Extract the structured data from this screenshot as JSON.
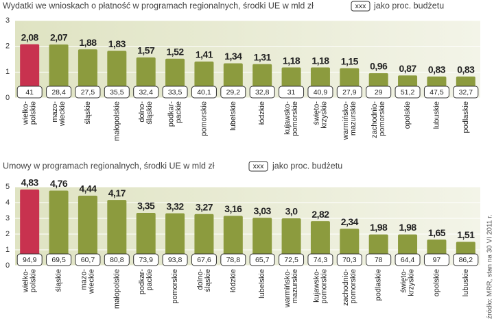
{
  "source": "źródło: MRR, stan na 30 VI 2011 r.",
  "chart_data": [
    {
      "type": "bar",
      "title": "Wydatki we wnioskach o płatność w programach regionalnych, środki UE w mld zł",
      "legend_box": "xxx",
      "legend_label": "jako proc. budżetu",
      "categories": [
        [
          "wielko-",
          "polskie"
        ],
        [
          "mazo-",
          "wieckie"
        ],
        [
          "śląskie"
        ],
        [
          "małopolskie"
        ],
        [
          "dolno-",
          "śląskie"
        ],
        [
          "podkar-",
          "packie"
        ],
        [
          "pomorskie"
        ],
        [
          "lubelskie"
        ],
        [
          "łódzkie"
        ],
        [
          "kujawsko-",
          "pomorskie"
        ],
        [
          "święto-",
          "krzyskie"
        ],
        [
          "warmińsko-",
          "mazurskie"
        ],
        [
          "zachodnio-",
          "pomorskie"
        ],
        [
          "opolskie"
        ],
        [
          "lubuskie"
        ],
        [
          "podlaskie"
        ]
      ],
      "values": [
        2.08,
        2.07,
        1.88,
        1.83,
        1.57,
        1.52,
        1.41,
        1.34,
        1.31,
        1.18,
        1.18,
        1.15,
        0.96,
        0.87,
        0.83,
        0.83
      ],
      "value_labels": [
        "2,08",
        "2,07",
        "1,88",
        "1,83",
        "1,57",
        "1,52",
        "1,41",
        "1,34",
        "1,31",
        "1,18",
        "1,18",
        "1,15",
        "0,96",
        "0,87",
        "0,83",
        "0,83"
      ],
      "shares": [
        41,
        28.4,
        27.5,
        35.5,
        32.4,
        33.5,
        40.1,
        29.2,
        32.8,
        31,
        40.9,
        27.9,
        29,
        51.2,
        47.5,
        32.7
      ],
      "share_labels": [
        "41",
        "28,4",
        "27,5",
        "35,5",
        "32,4",
        "33,5",
        "40,1",
        "29,2",
        "32,8",
        "31",
        "40,9",
        "27,9",
        "29",
        "51,2",
        "47,5",
        "32,7"
      ],
      "color": "#8c9b3e",
      "highlight_color": "#c8324f",
      "highlight": 0,
      "ylim": [
        0,
        3
      ],
      "yticks": [
        0,
        1,
        2,
        3
      ],
      "grid": true
    },
    {
      "type": "bar",
      "title": "Umowy w programach regionalnych, środki UE w mld zł",
      "legend_box": "xxx",
      "legend_label": "jako proc. budżetu",
      "categories": [
        [
          "wielko-",
          "polskie"
        ],
        [
          "śląskie"
        ],
        [
          "mazo-",
          "wieckie"
        ],
        [
          "małopolskie"
        ],
        [
          "podkar-",
          "packie"
        ],
        [
          "pomorskie"
        ],
        [
          "dolno-",
          "śląskie"
        ],
        [
          "łódzkie"
        ],
        [
          "lubelskie"
        ],
        [
          "warmińsko-",
          "mazurskie"
        ],
        [
          "kujawsko-",
          "pomorskie"
        ],
        [
          "zachodnio-",
          "pomorskie"
        ],
        [
          "podlaskie"
        ],
        [
          "święto-",
          "krzyskie"
        ],
        [
          "opolskie"
        ],
        [
          "lubuskie"
        ]
      ],
      "values": [
        4.83,
        4.76,
        4.44,
        4.17,
        3.35,
        3.32,
        3.27,
        3.16,
        3.03,
        3,
        2.82,
        2.34,
        1.98,
        1.98,
        1.65,
        1.51
      ],
      "value_labels": [
        "4,83",
        "4,76",
        "4,44",
        "4,17",
        "3,35",
        "3,32",
        "3,27",
        "3,16",
        "3,03",
        "3,0",
        "2,82",
        "2,34",
        "1,98",
        "1,98",
        "1,65",
        "1,51"
      ],
      "shares": [
        94.9,
        69.5,
        60.7,
        80.8,
        73.9,
        93.8,
        67.6,
        78.8,
        65.7,
        72.5,
        74.3,
        70.3,
        78,
        64.4,
        97,
        86.2
      ],
      "share_labels": [
        "94,9",
        "69,5",
        "60,7",
        "80,8",
        "73,9",
        "93,8",
        "67,6",
        "78,8",
        "65,7",
        "72,5",
        "74,3",
        "70,3",
        "78",
        "64,4",
        "97",
        "86,2"
      ],
      "color": "#8c9b3e",
      "highlight_color": "#c8324f",
      "highlight": 0,
      "ylim": [
        0,
        5
      ],
      "yticks": [
        0,
        1,
        2,
        3,
        4,
        5
      ],
      "grid": true
    }
  ]
}
